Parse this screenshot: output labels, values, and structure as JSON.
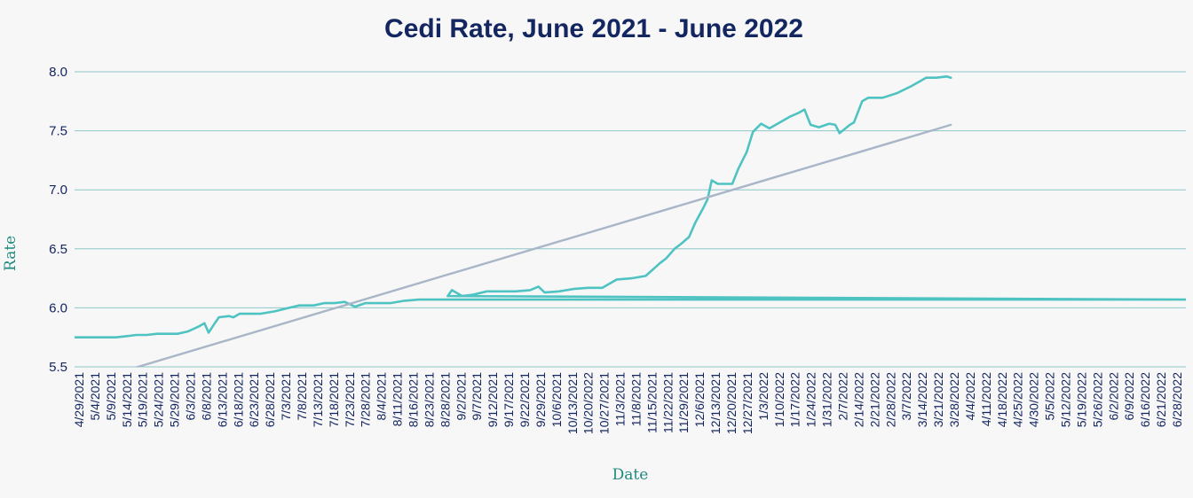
{
  "chart_data": {
    "type": "line",
    "title": "Cedi Rate, June 2021 - June 2022",
    "xlabel": "Date",
    "ylabel": "Rate",
    "ylim": [
      5.5,
      8.0
    ],
    "yticks": [
      "5.5",
      "6.0",
      "6.5",
      "7.0",
      "7.5",
      "8.0"
    ],
    "grid": true,
    "legend": "none",
    "colors": {
      "series": "#4fc3c2",
      "trend": "#a9b6c8",
      "grid": "#8fc6c6",
      "title": "#142660",
      "axis_title": "#1f8a7e"
    },
    "x_tick_labels": [
      "4/29/2021",
      "5/4/2021",
      "5/9/2021",
      "5/14/2021",
      "5/19/2021",
      "5/24/2021",
      "5/29/2021",
      "6/3/2021",
      "6/8/2021",
      "6/13/2021",
      "6/18/2021",
      "6/23/2021",
      "6/28/2021",
      "7/3/2021",
      "7/8/2021",
      "7/13/2021",
      "7/18/2021",
      "7/23/2021",
      "7/28/2021",
      "8/4/2021",
      "8/11/2021",
      "8/16/2021",
      "8/23/2021",
      "8/28/2021",
      "9/2/2021",
      "9/7/2021",
      "9/12/2021",
      "9/17/2021",
      "9/22/2021",
      "9/29/2021",
      "10/6/2021",
      "10/13/2021",
      "10/20/2022",
      "10/27/2021",
      "11/3/2021",
      "11/8/2021",
      "11/15/2021",
      "11/22/2021",
      "11/29/2021",
      "12/6/2021",
      "12/13/2021",
      "12/20/2021",
      "12/27/2021",
      "1/3/2022",
      "1/10/2022",
      "1/17/2022",
      "1/24/2022",
      "1/31/2022",
      "2/7/2022",
      "2/14/2022",
      "2/21/2022",
      "2/28/2022",
      "3/7/2022",
      "3/14/2022",
      "3/21/2022",
      "3/28/2022",
      "4/4/2022",
      "4/11/2022",
      "4/18/2022",
      "4/25/2022",
      "4/30/2022",
      "5/5/2022",
      "5/12/2022",
      "5/19/2022",
      "5/26/2022",
      "6/2/2022",
      "6/9/2022",
      "6/16/2022",
      "6/21/2022",
      "6/28/2022"
    ],
    "series": [
      {
        "type": "line",
        "x": [
          "4/29/2021",
          "5/4/2021",
          "5/9/2021",
          "5/14/2021",
          "5/19/2021",
          "5/24/2021",
          "5/29/2021",
          "6/3/2021",
          "6/8/2021",
          "6/13/2021",
          "6/18/2021",
          "6/23/2021",
          "6/28/2021",
          "7/1/2021",
          "7/3/2021",
          "7/6/2021",
          "7/8/2021",
          "7/13/2021",
          "7/15/2021",
          "7/18/2021",
          "7/23/2021",
          "7/28/2021",
          "8/4/2021",
          "8/11/2021",
          "8/16/2021",
          "8/23/2021",
          "8/28/2021",
          "9/2/2021",
          "9/7/2021",
          "9/12/2021",
          "9/17/2021",
          "9/22/2021",
          "9/29/2021",
          "10/6/2021",
          "10/13/2021",
          "10/20/2022",
          "10/27/2021",
          "10/29/2021",
          "11/3/2021",
          "11/8/2021",
          "11/15/2021",
          "11/22/2021",
          "11/29/2021",
          "12/6/2021",
          "12/10/2021",
          "12/13/2021",
          "12/20/2021",
          "12/27/2021",
          "1/3/2022",
          "1/10/2022",
          "1/17/2022",
          "1/24/2022",
          "1/31/2022",
          "2/7/2022",
          "2/10/2022",
          "2/14/2022",
          "2/17/2022",
          "2/21/2022",
          "2/24/2022",
          "2/28/2022",
          "3/2/2022",
          "3/4/2022",
          "3/7/2022",
          "3/14/2022",
          "3/17/2022",
          "3/21/2022",
          "3/24/2022",
          "3/28/2022",
          "4/1/2022",
          "4/4/2022",
          "4/11/2022",
          "4/15/2022",
          "4/18/2022",
          "4/21/2022",
          "4/25/2022",
          "4/30/2022",
          "5/3/2022",
          "5/5/2022",
          "5/10/2022",
          "5/12/2022",
          "5/16/2022",
          "5/19/2022",
          "5/26/2022",
          "6/2/2022",
          "6/9/2022",
          "6/16/2022",
          "6/21/2022",
          "6/26/2022",
          "6/28/2022"
        ],
        "values": [
          5.75,
          5.75,
          5.75,
          5.75,
          5.75,
          5.76,
          5.77,
          5.77,
          5.78,
          5.78,
          5.78,
          5.8,
          5.84,
          5.87,
          5.79,
          5.87,
          5.92,
          5.93,
          5.92,
          5.95,
          5.95,
          5.95,
          5.97,
          6.0,
          6.02,
          6.02,
          6.04,
          6.04,
          6.05,
          6.01,
          6.04,
          6.04,
          6.04,
          6.06,
          6.07,
          6.07,
          6.1,
          6.15,
          6.1,
          6.11,
          6.14,
          6.14,
          6.14,
          6.15,
          6.18,
          6.13,
          6.14,
          6.16,
          6.17,
          6.17,
          6.24,
          6.25,
          6.27,
          6.38,
          6.42,
          6.5,
          6.54,
          6.6,
          6.72,
          6.85,
          6.92,
          7.08,
          7.05,
          7.05,
          7.18,
          7.32,
          7.49,
          7.56,
          7.52,
          7.55,
          7.62,
          7.65,
          7.68,
          7.55,
          7.53,
          7.56,
          7.55,
          7.48,
          7.55,
          7.57,
          7.75,
          7.78,
          7.78,
          7.82,
          7.88,
          7.95,
          7.95,
          7.96,
          7.95
        ]
      },
      {
        "type": "linear-trendline",
        "x": [
          "4/29/2021",
          "6/28/2022"
        ],
        "values": [
          5.34,
          7.55
        ]
      }
    ]
  }
}
